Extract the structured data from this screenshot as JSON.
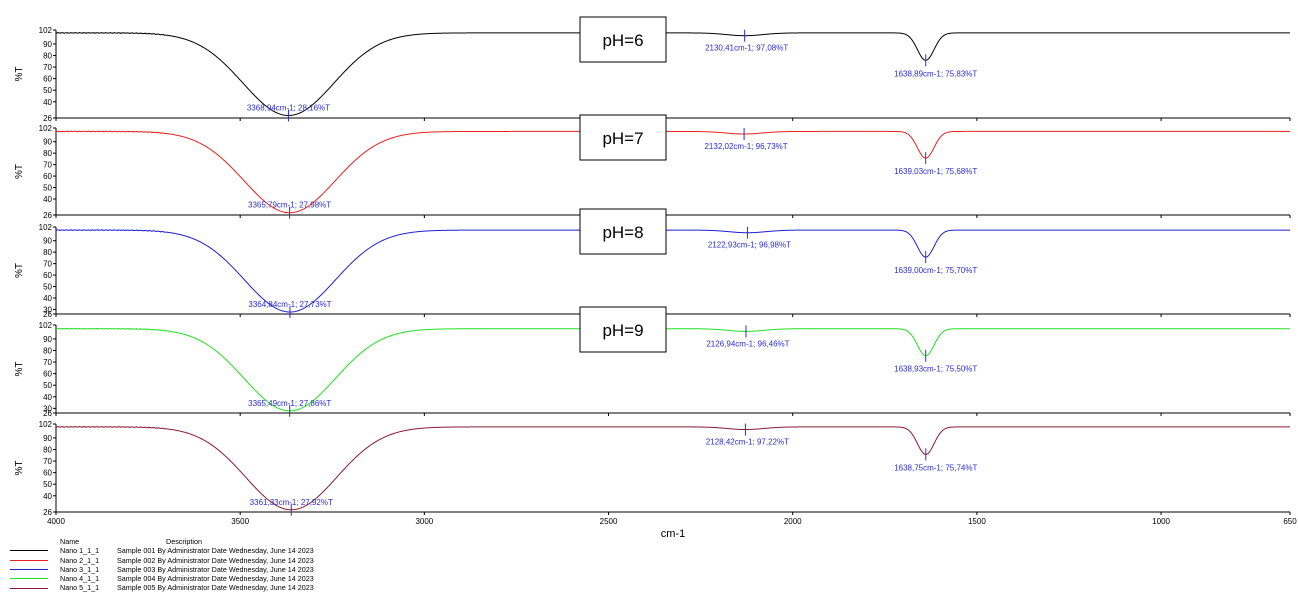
{
  "chart_data": {
    "type": "line",
    "xlabel": "cm-1",
    "ylabel": "%T",
    "xlim": [
      4000,
      650
    ],
    "x_ticks": [
      4000,
      3500,
      3000,
      2500,
      2000,
      1500,
      1000,
      650
    ],
    "y_ticks": [
      26,
      30,
      40,
      50,
      60,
      70,
      80,
      90,
      102
    ],
    "ylim": [
      26,
      102
    ],
    "legend_headers": {
      "name": "Name",
      "description": "Description"
    },
    "series": [
      {
        "name": "Nano 1_1_1",
        "description": "Sample 001 By Administrator Date Wednesday, June 14 2023",
        "color": "#000000",
        "condition": "pH=6",
        "baseline": 99.5,
        "minimum": 28.16,
        "tick_labels": [
          "102",
          "90",
          "80",
          "70",
          "60",
          "50",
          "40",
          "26"
        ],
        "annotations": [
          {
            "x": 3368.94,
            "y": 28.16,
            "text": "3368,94cm-1; 28,16%T"
          },
          {
            "x": 2130.41,
            "y": 97.08,
            "text": "2130,41cm-1; 97,08%T"
          },
          {
            "x": 1638.89,
            "y": 75.83,
            "text": "1638,89cm-1; 75,83%T"
          }
        ]
      },
      {
        "name": "Nano 2_1_1",
        "description": "Sample 002 By Administrator Date Wednesday, June 14 2023",
        "color": "#e8201f",
        "condition": "pH=7",
        "baseline": 99.0,
        "minimum": 27.98,
        "tick_labels": [
          "102",
          "90",
          "80",
          "70",
          "60",
          "50",
          "40",
          "26"
        ],
        "annotations": [
          {
            "x": 3365.79,
            "y": 27.98,
            "text": "3365,79cm-1; 27,98%T"
          },
          {
            "x": 2132.02,
            "y": 96.73,
            "text": "2132,02cm-1; 96,73%T"
          },
          {
            "x": 1639.03,
            "y": 75.68,
            "text": "1639,03cm-1; 75,68%T"
          }
        ]
      },
      {
        "name": "Nano 3_1_1",
        "description": "Sample 003 By Administrator Date Wednesday, June 14 2023",
        "color": "#1f1fd0",
        "condition": "pH=8",
        "baseline": 99.3,
        "minimum": 27.73,
        "tick_labels": [
          "102",
          "90",
          "80",
          "70",
          "60",
          "50",
          "40",
          "30",
          "26"
        ],
        "annotations": [
          {
            "x": 3364.84,
            "y": 27.73,
            "text": "3364,84cm-1; 27,73%T"
          },
          {
            "x": 2122.93,
            "y": 96.98,
            "text": "2122,93cm-1; 96,98%T"
          },
          {
            "x": 1639.0,
            "y": 75.7,
            "text": "1639,00cm-1; 75,70%T"
          }
        ]
      },
      {
        "name": "Nano 4_1_1",
        "description": "Sample 004 By Administrator Date Wednesday, June 14 2023",
        "color": "#22e022",
        "condition": "pH=9",
        "baseline": 98.8,
        "minimum": 27.86,
        "tick_labels": [
          "102",
          "90",
          "80",
          "70",
          "60",
          "50",
          "40",
          "30",
          "26"
        ],
        "annotations": [
          {
            "x": 3365.49,
            "y": 27.86,
            "text": "3365,49cm-1; 27,86%T"
          },
          {
            "x": 2126.94,
            "y": 96.46,
            "text": "2126,94cm-1; 96,46%T"
          },
          {
            "x": 1638.93,
            "y": 75.5,
            "text": "1638,93cm-1; 75,50%T"
          }
        ]
      },
      {
        "name": "Nano 5_1_1",
        "description": "Sample 005 By Administrator Date Wednesday, June 14 2023",
        "color": "#8a1a35",
        "condition": "",
        "baseline": 99.5,
        "minimum": 27.92,
        "tick_labels": [
          "102",
          "90",
          "80",
          "70",
          "60",
          "50",
          "40",
          "26"
        ],
        "annotations": [
          {
            "x": 3361.33,
            "y": 27.92,
            "text": "3361,33cm-1; 27,92%T"
          },
          {
            "x": 2128.42,
            "y": 97.22,
            "text": "2128,42cm-1; 97,22%T"
          },
          {
            "x": 1638.75,
            "y": 75.74,
            "text": "1638,75cm-1; 75,74%T"
          }
        ]
      }
    ]
  }
}
